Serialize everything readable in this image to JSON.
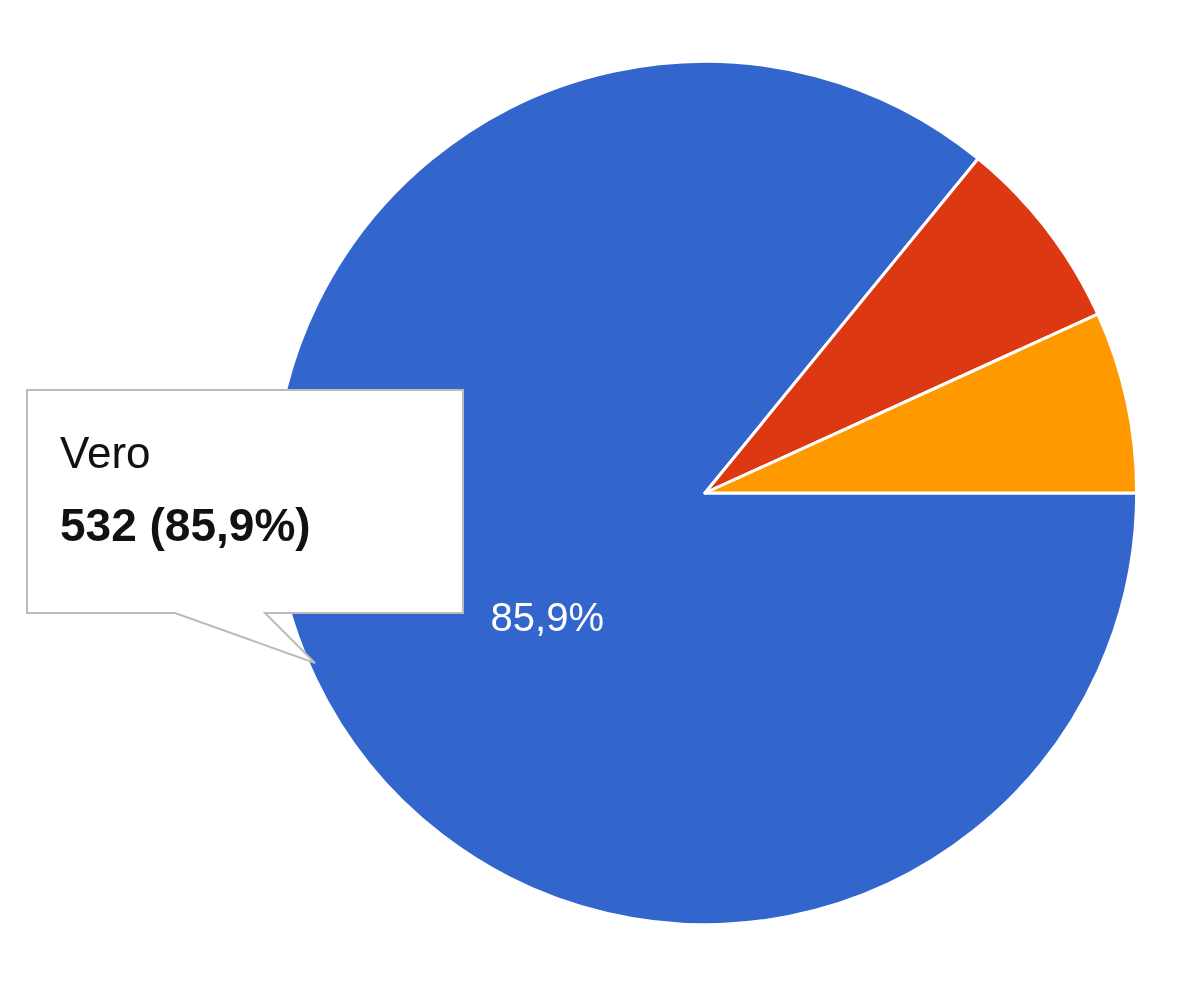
{
  "chart_data": {
    "type": "pie",
    "categories": [
      "Vero",
      null,
      null
    ],
    "values": [
      85.9,
      7.3,
      6.8
    ],
    "colors": [
      "#3366cc",
      "#dc3912",
      "#ff9900"
    ],
    "value_labels": [
      "85,9%",
      null,
      null
    ],
    "annotations": [
      "532 (85,9%)"
    ],
    "legend": false
  }
}
